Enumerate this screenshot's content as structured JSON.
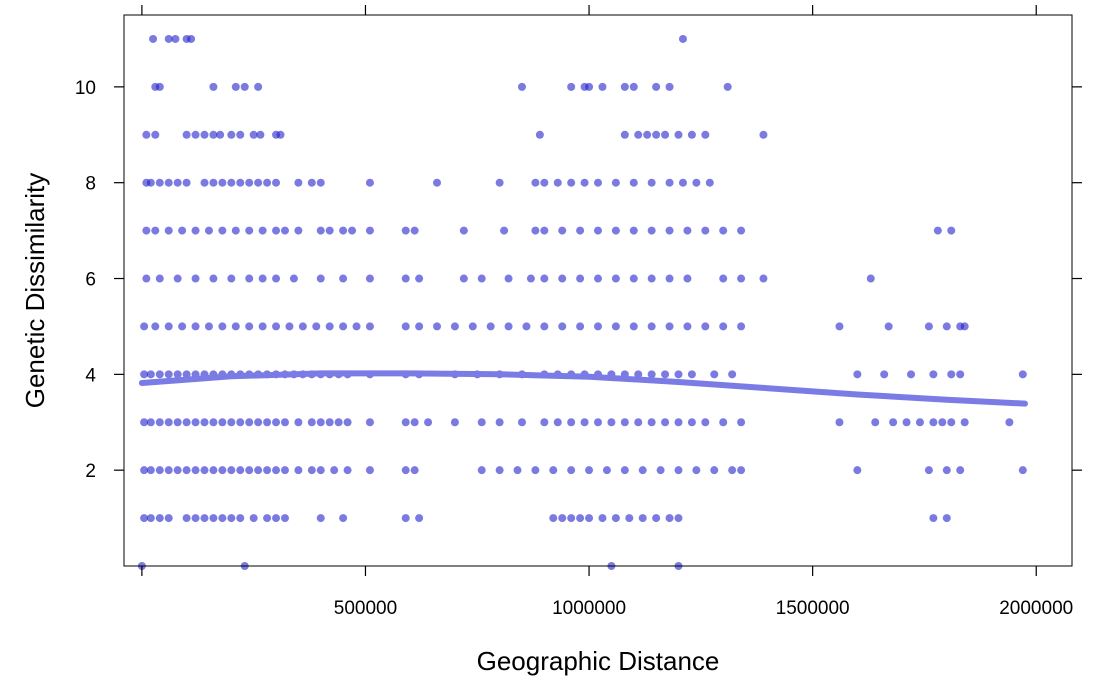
{
  "chart_data": {
    "type": "scatter",
    "xlabel": "Geographic Distance",
    "ylabel": "Genetic Dissimilarity",
    "xlim": [
      -40000,
      2080000
    ],
    "ylim": [
      0,
      11.5
    ],
    "x_ticks": [
      500000,
      1000000,
      1500000,
      2000000
    ],
    "x_tick_labels": [
      "500000",
      "1000000",
      "1500000",
      "2000000"
    ],
    "y_ticks": [
      2,
      4,
      6,
      8,
      10
    ],
    "y_tick_labels": [
      "2",
      "4",
      "6",
      "8",
      "10"
    ],
    "grid": false,
    "colors": {
      "points": "#2222cc",
      "smooth": "#7b7be6",
      "axis": "#000000"
    },
    "point_opacity": 0.6,
    "series": [
      {
        "type": "scatter",
        "groups": [
          {
            "y": 11,
            "x": [
              25000,
              60000,
              75000,
              100000,
              110000,
              1210000
            ]
          },
          {
            "y": 10,
            "x": [
              30000,
              40000,
              160000,
              210000,
              230000,
              260000,
              850000,
              960000,
              990000,
              1000000,
              1030000,
              1080000,
              1100000,
              1150000,
              1180000,
              1310000
            ]
          },
          {
            "y": 9,
            "x": [
              10000,
              30000,
              100000,
              120000,
              140000,
              160000,
              175000,
              200000,
              220000,
              250000,
              265000,
              300000,
              310000,
              890000,
              1080000,
              1110000,
              1130000,
              1150000,
              1170000,
              1200000,
              1230000,
              1260000,
              1390000
            ]
          },
          {
            "y": 8,
            "x": [
              10000,
              20000,
              40000,
              60000,
              80000,
              100000,
              140000,
              160000,
              180000,
              200000,
              220000,
              240000,
              260000,
              280000,
              300000,
              350000,
              380000,
              400000,
              510000,
              660000,
              800000,
              880000,
              900000,
              930000,
              960000,
              990000,
              1020000,
              1060000,
              1100000,
              1140000,
              1180000,
              1210000,
              1240000,
              1270000
            ]
          },
          {
            "y": 7,
            "x": [
              10000,
              30000,
              60000,
              90000,
              120000,
              150000,
              180000,
              210000,
              240000,
              270000,
              300000,
              320000,
              350000,
              400000,
              420000,
              450000,
              470000,
              510000,
              590000,
              610000,
              720000,
              810000,
              880000,
              900000,
              940000,
              980000,
              1020000,
              1060000,
              1100000,
              1140000,
              1180000,
              1220000,
              1260000,
              1300000,
              1340000,
              1780000,
              1810000
            ]
          },
          {
            "y": 6,
            "x": [
              10000,
              40000,
              80000,
              120000,
              160000,
              200000,
              240000,
              270000,
              300000,
              340000,
              400000,
              450000,
              510000,
              590000,
              620000,
              720000,
              760000,
              820000,
              870000,
              900000,
              940000,
              980000,
              1020000,
              1060000,
              1100000,
              1140000,
              1180000,
              1220000,
              1300000,
              1340000,
              1390000,
              1630000
            ]
          },
          {
            "y": 5,
            "x": [
              5000,
              30000,
              60000,
              90000,
              120000,
              150000,
              180000,
              210000,
              240000,
              270000,
              300000,
              330000,
              360000,
              390000,
              420000,
              450000,
              480000,
              510000,
              590000,
              620000,
              660000,
              700000,
              740000,
              780000,
              820000,
              860000,
              900000,
              940000,
              980000,
              1020000,
              1060000,
              1100000,
              1140000,
              1180000,
              1220000,
              1260000,
              1300000,
              1340000,
              1560000,
              1670000,
              1760000,
              1800000,
              1830000,
              1840000
            ]
          },
          {
            "y": 4,
            "x": [
              5000,
              20000,
              40000,
              60000,
              80000,
              100000,
              120000,
              140000,
              160000,
              180000,
              200000,
              220000,
              240000,
              260000,
              280000,
              300000,
              320000,
              340000,
              360000,
              380000,
              400000,
              420000,
              440000,
              460000,
              510000,
              590000,
              620000,
              700000,
              750000,
              800000,
              850000,
              900000,
              930000,
              960000,
              990000,
              1020000,
              1050000,
              1080000,
              1110000,
              1140000,
              1170000,
              1200000,
              1230000,
              1280000,
              1320000,
              1600000,
              1660000,
              1720000,
              1770000,
              1810000,
              1830000,
              1970000
            ]
          },
          {
            "y": 3,
            "x": [
              5000,
              20000,
              40000,
              60000,
              80000,
              100000,
              120000,
              140000,
              160000,
              180000,
              200000,
              220000,
              240000,
              260000,
              280000,
              300000,
              320000,
              350000,
              380000,
              400000,
              420000,
              440000,
              460000,
              510000,
              590000,
              610000,
              640000,
              700000,
              760000,
              800000,
              850000,
              900000,
              930000,
              960000,
              990000,
              1020000,
              1050000,
              1080000,
              1110000,
              1140000,
              1170000,
              1200000,
              1230000,
              1260000,
              1300000,
              1340000,
              1560000,
              1640000,
              1680000,
              1710000,
              1740000,
              1770000,
              1790000,
              1810000,
              1840000,
              1940000
            ]
          },
          {
            "y": 2,
            "x": [
              5000,
              20000,
              40000,
              60000,
              80000,
              100000,
              120000,
              140000,
              160000,
              180000,
              200000,
              220000,
              240000,
              260000,
              280000,
              300000,
              320000,
              350000,
              380000,
              400000,
              430000,
              460000,
              510000,
              590000,
              610000,
              760000,
              800000,
              840000,
              880000,
              920000,
              960000,
              1000000,
              1040000,
              1080000,
              1120000,
              1160000,
              1200000,
              1240000,
              1280000,
              1320000,
              1340000,
              1600000,
              1760000,
              1800000,
              1830000,
              1970000
            ]
          },
          {
            "y": 1,
            "x": [
              5000,
              20000,
              40000,
              60000,
              100000,
              120000,
              140000,
              160000,
              180000,
              200000,
              220000,
              250000,
              280000,
              300000,
              320000,
              400000,
              450000,
              590000,
              620000,
              920000,
              940000,
              960000,
              980000,
              1000000,
              1030000,
              1060000,
              1090000,
              1120000,
              1150000,
              1180000,
              1200000,
              1770000,
              1800000
            ]
          },
          {
            "y": 0,
            "x": [
              0,
              230000,
              1050000,
              1200000
            ]
          }
        ]
      },
      {
        "type": "line",
        "x": [
          0,
          200000,
          400000,
          600000,
          800000,
          1000000,
          1200000,
          1400000,
          1600000,
          1800000,
          1975000
        ],
        "y": [
          3.82,
          3.96,
          4.02,
          4.02,
          4.0,
          3.95,
          3.84,
          3.71,
          3.58,
          3.47,
          3.39
        ]
      }
    ]
  }
}
